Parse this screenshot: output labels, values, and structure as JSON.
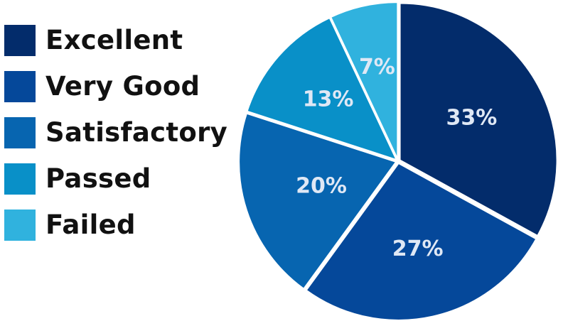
{
  "chart_data": {
    "type": "pie",
    "title": "",
    "legend_position": "left",
    "slices": [
      {
        "label": "Excellent",
        "value": 33,
        "value_label": "33%",
        "color": "#032c6b"
      },
      {
        "label": "Very Good",
        "value": 27,
        "value_label": "27%",
        "color": "#05489a"
      },
      {
        "label": "Satisfactory",
        "value": 20,
        "value_label": "20%",
        "color": "#0765b0"
      },
      {
        "label": "Passed",
        "value": 13,
        "value_label": "13%",
        "color": "#0990c8"
      },
      {
        "label": "Failed",
        "value": 7,
        "value_label": "7%",
        "color": "#30b2de"
      }
    ]
  }
}
